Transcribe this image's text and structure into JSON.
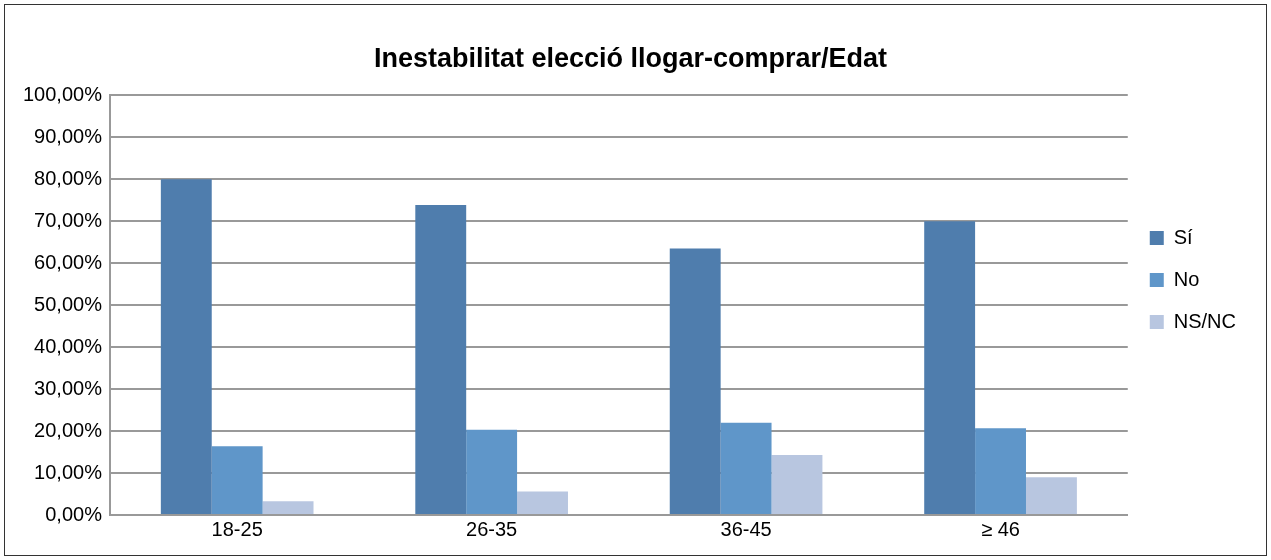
{
  "chart_data": {
    "type": "bar",
    "title": "Inestabilitat elecció llogar-comprar/Edat",
    "categories": [
      "18-25",
      "26-35",
      "36-45",
      "≥ 46"
    ],
    "series": [
      {
        "name": "Sí",
        "color": "#4f7dad",
        "values": [
          80.0,
          73.9,
          63.5,
          70.0
        ]
      },
      {
        "name": "No",
        "color": "#5f96c9",
        "values": [
          16.4,
          20.3,
          22.0,
          20.7
        ]
      },
      {
        "name": "NS/NC",
        "color": "#b8c6e0",
        "values": [
          3.3,
          5.6,
          14.3,
          9.0
        ]
      }
    ],
    "ylim": [
      0,
      100
    ],
    "yticks": [
      {
        "value": 0,
        "label": "0,00%"
      },
      {
        "value": 10,
        "label": "10,00%"
      },
      {
        "value": 20,
        "label": "20,00%"
      },
      {
        "value": 30,
        "label": "30,00%"
      },
      {
        "value": 40,
        "label": "40,00%"
      },
      {
        "value": 50,
        "label": "50,00%"
      },
      {
        "value": 60,
        "label": "60,00%"
      },
      {
        "value": 70,
        "label": "70,00%"
      },
      {
        "value": 80,
        "label": "80,00%"
      },
      {
        "value": 90,
        "label": "90,00%"
      },
      {
        "value": 100,
        "label": "100,00%"
      }
    ],
    "grid": "y",
    "legend": "right"
  }
}
